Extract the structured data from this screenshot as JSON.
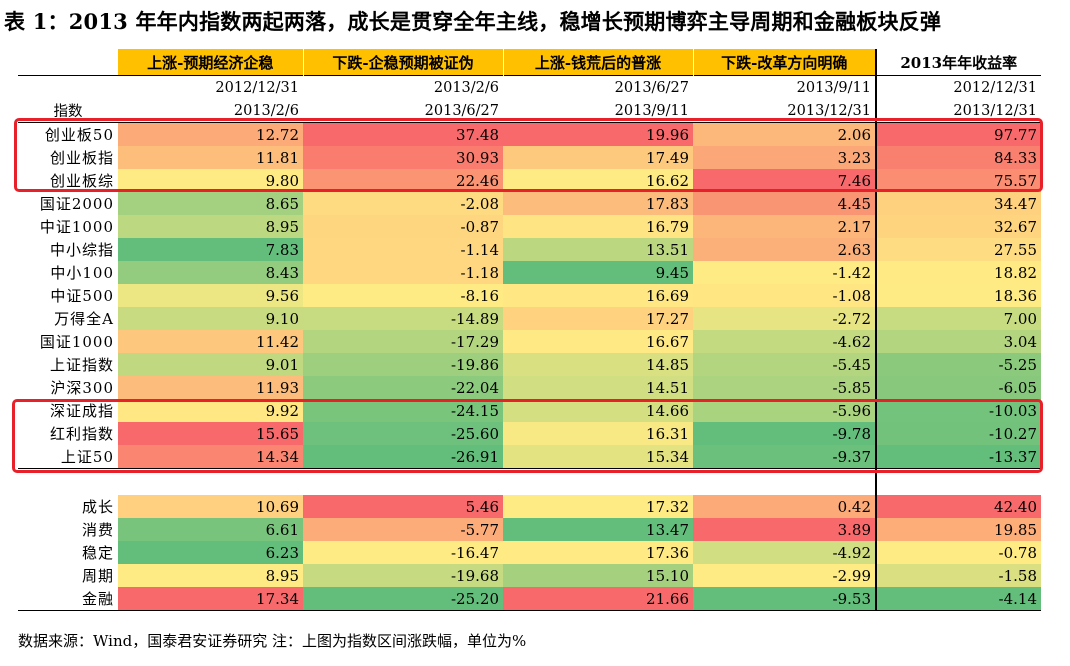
{
  "title": "表 1：2013 年年内指数两起两落，成长是贯穿全年主线，稳增长预期博弈主导周期和金融板块反弹",
  "header": {
    "index_label": "指数",
    "periods": [
      {
        "label": "上涨-预期经济企稳",
        "start": "2012/12/31",
        "end": "2013/2/6"
      },
      {
        "label": "下跌-企稳预期被证伪",
        "start": "2013/2/6",
        "end": "2013/6/27"
      },
      {
        "label": "上涨-钱荒后的普涨",
        "start": "2013/6/27",
        "end": "2013/9/11"
      },
      {
        "label": "下跌-改革方向明确",
        "start": "2013/9/11",
        "end": "2013/12/31"
      },
      {
        "label": "2013年年收益率",
        "start": "2012/12/31",
        "end": "2013/12/31"
      }
    ]
  },
  "rows": [
    {
      "name": "创业板50",
      "values": [
        "12.72",
        "37.48",
        "19.96",
        "2.06",
        "97.77"
      ]
    },
    {
      "name": "创业板指",
      "values": [
        "11.81",
        "30.93",
        "17.49",
        "3.23",
        "84.33"
      ]
    },
    {
      "name": "创业板综",
      "values": [
        "9.80",
        "22.46",
        "16.62",
        "7.46",
        "75.57"
      ]
    },
    {
      "name": "国证2000",
      "values": [
        "8.65",
        "-2.08",
        "17.83",
        "4.45",
        "34.47"
      ]
    },
    {
      "name": "中证1000",
      "values": [
        "8.95",
        "-0.87",
        "16.79",
        "2.17",
        "32.67"
      ]
    },
    {
      "name": "中小综指",
      "values": [
        "7.83",
        "-1.14",
        "13.51",
        "2.63",
        "27.55"
      ]
    },
    {
      "name": "中小100",
      "values": [
        "8.43",
        "-1.18",
        "9.45",
        "-1.42",
        "18.82"
      ]
    },
    {
      "name": "中证500",
      "values": [
        "9.56",
        "-8.16",
        "16.69",
        "-1.08",
        "18.36"
      ]
    },
    {
      "name": "万得全A",
      "values": [
        "9.10",
        "-14.89",
        "17.27",
        "-2.72",
        "7.00"
      ]
    },
    {
      "name": "国证1000",
      "values": [
        "11.42",
        "-17.29",
        "16.67",
        "-4.62",
        "3.04"
      ]
    },
    {
      "name": "上证指数",
      "values": [
        "9.01",
        "-19.86",
        "14.85",
        "-5.45",
        "-5.25"
      ]
    },
    {
      "name": "沪深300",
      "values": [
        "11.93",
        "-22.04",
        "14.51",
        "-5.85",
        "-6.05"
      ]
    },
    {
      "name": "深证成指",
      "values": [
        "9.92",
        "-24.15",
        "14.66",
        "-5.96",
        "-10.03"
      ]
    },
    {
      "name": "红利指数",
      "values": [
        "15.65",
        "-25.60",
        "16.31",
        "-9.78",
        "-10.27"
      ]
    },
    {
      "name": "上证50",
      "values": [
        "14.34",
        "-26.91",
        "15.34",
        "-9.37",
        "-13.37"
      ]
    }
  ],
  "sectors": [
    {
      "name": "成长",
      "values": [
        "10.69",
        "5.46",
        "17.32",
        "0.42",
        "42.40"
      ]
    },
    {
      "name": "消费",
      "values": [
        "6.61",
        "-5.77",
        "13.47",
        "3.89",
        "19.85"
      ]
    },
    {
      "name": "稳定",
      "values": [
        "6.23",
        "-16.47",
        "17.36",
        "-4.92",
        "-0.78"
      ]
    },
    {
      "name": "周期",
      "values": [
        "8.95",
        "-19.68",
        "15.10",
        "-2.99",
        "-1.58"
      ]
    },
    {
      "name": "金融",
      "values": [
        "17.34",
        "-25.20",
        "21.66",
        "-9.53",
        "-4.14"
      ]
    }
  ],
  "footer": "数据来源：Wind，国泰君安证券研究    注：上图为指数区间涨跌幅，单位为%",
  "colors": {
    "header_fill": "#ffc000",
    "highlight_box": "#e8202a",
    "scale_low": "#63be7b",
    "scale_mid": "#ffeb84",
    "scale_high": "#f8696b"
  }
}
